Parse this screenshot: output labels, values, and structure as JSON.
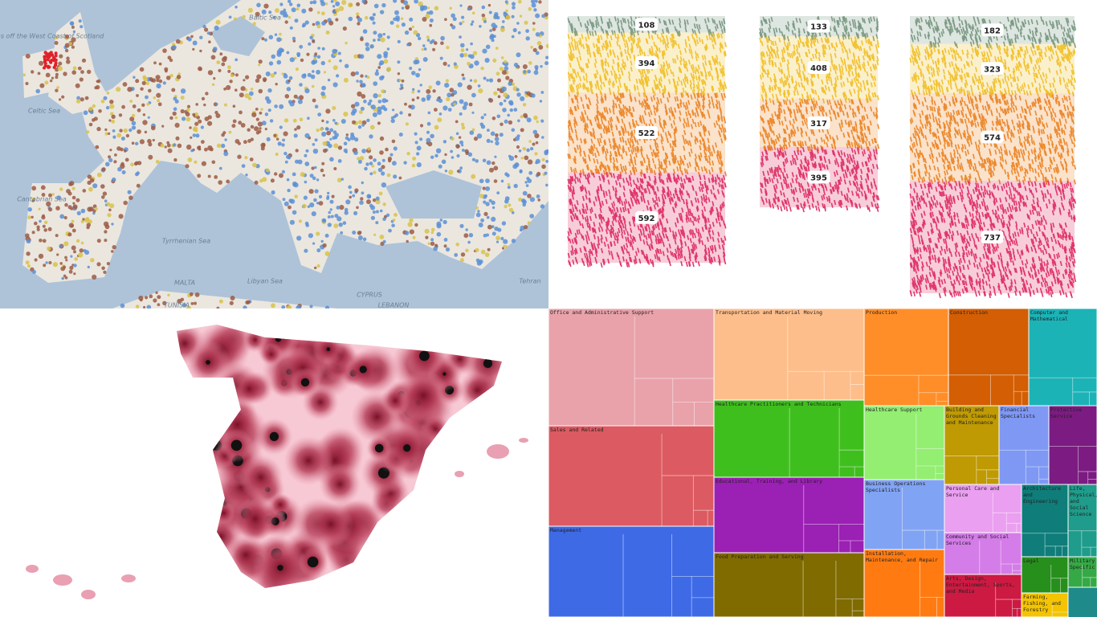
{
  "map_europe": {
    "labels": [
      "Inner Seas off the West Coast of Scotland",
      "Baltic Sea",
      "Celtic Sea",
      "Cantabrian Sea",
      "Tyrrhenian Sea",
      "Libyan Sea",
      "Tehran",
      "TUNISIA",
      "MALTA",
      "CYPRUS",
      "LEBANON"
    ]
  },
  "chart_data": {
    "type": "stacked-bar",
    "categories": [
      null,
      null,
      null
    ],
    "series": [
      {
        "color": "#7d9b86",
        "values": [
          108,
          133,
          182
        ]
      },
      {
        "color": "#f1c232",
        "values": [
          394,
          408,
          323
        ]
      },
      {
        "color": "#ec8a2f",
        "values": [
          522,
          317,
          574
        ]
      },
      {
        "color": "#e0376b",
        "values": [
          592,
          395,
          737
        ]
      }
    ]
  },
  "treemap": {
    "groups": [
      {
        "label": "Office and Administrative Support",
        "color": "#e9a2aa"
      },
      {
        "label": "Sales and Related",
        "color": "#dc5a61"
      },
      {
        "label": "Management",
        "color": "#3e6ae6"
      },
      {
        "label": "Transportation and Material Moving",
        "color": "#fdbe8b"
      },
      {
        "label": "Healthcare Practitioners and Technicians",
        "color": "#3fbf1d"
      },
      {
        "label": "Educational, Training, and Library",
        "color": "#9b20b4"
      },
      {
        "label": "Food Preparation and Serving",
        "color": "#806b00"
      },
      {
        "label": "Production",
        "color": "#ff8e28"
      },
      {
        "label": "Construction",
        "color": "#d35e03"
      },
      {
        "label": "Computer and Mathematical",
        "color": "#1cb3b7"
      },
      {
        "label": "Healthcare Support",
        "color": "#93ee72"
      },
      {
        "label": "Building and Grounds Cleaning and Maintenance",
        "color": "#bf9a02"
      },
      {
        "label": "Financial Specialists",
        "color": "#7f98f4"
      },
      {
        "label": "Protective Service",
        "color": "#7c1b82"
      },
      {
        "label": "Business Operations Specialists",
        "color": "#81a3f4"
      },
      {
        "label": "Personal Care and Service",
        "color": "#ea9ff0"
      },
      {
        "label": "Architecture and Engineering",
        "color": "#0f7d79"
      },
      {
        "label": "Life, Physical, and Social Science",
        "color": "#1f9c8b"
      },
      {
        "label": "Community and Social Services",
        "color": "#d47ce8"
      },
      {
        "label": "Installation, Maintenance, and Repair",
        "color": "#ff7b12"
      },
      {
        "label": "Arts, Design, Entertainment, Sports, and Media",
        "color": "#cc1a42"
      },
      {
        "label": "Legal",
        "color": "#278f1c"
      },
      {
        "label": "Military Specific",
        "color": "#35a945"
      },
      {
        "label": "Farming, Fishing, and Forestry",
        "color": "#f4c402"
      }
    ]
  }
}
